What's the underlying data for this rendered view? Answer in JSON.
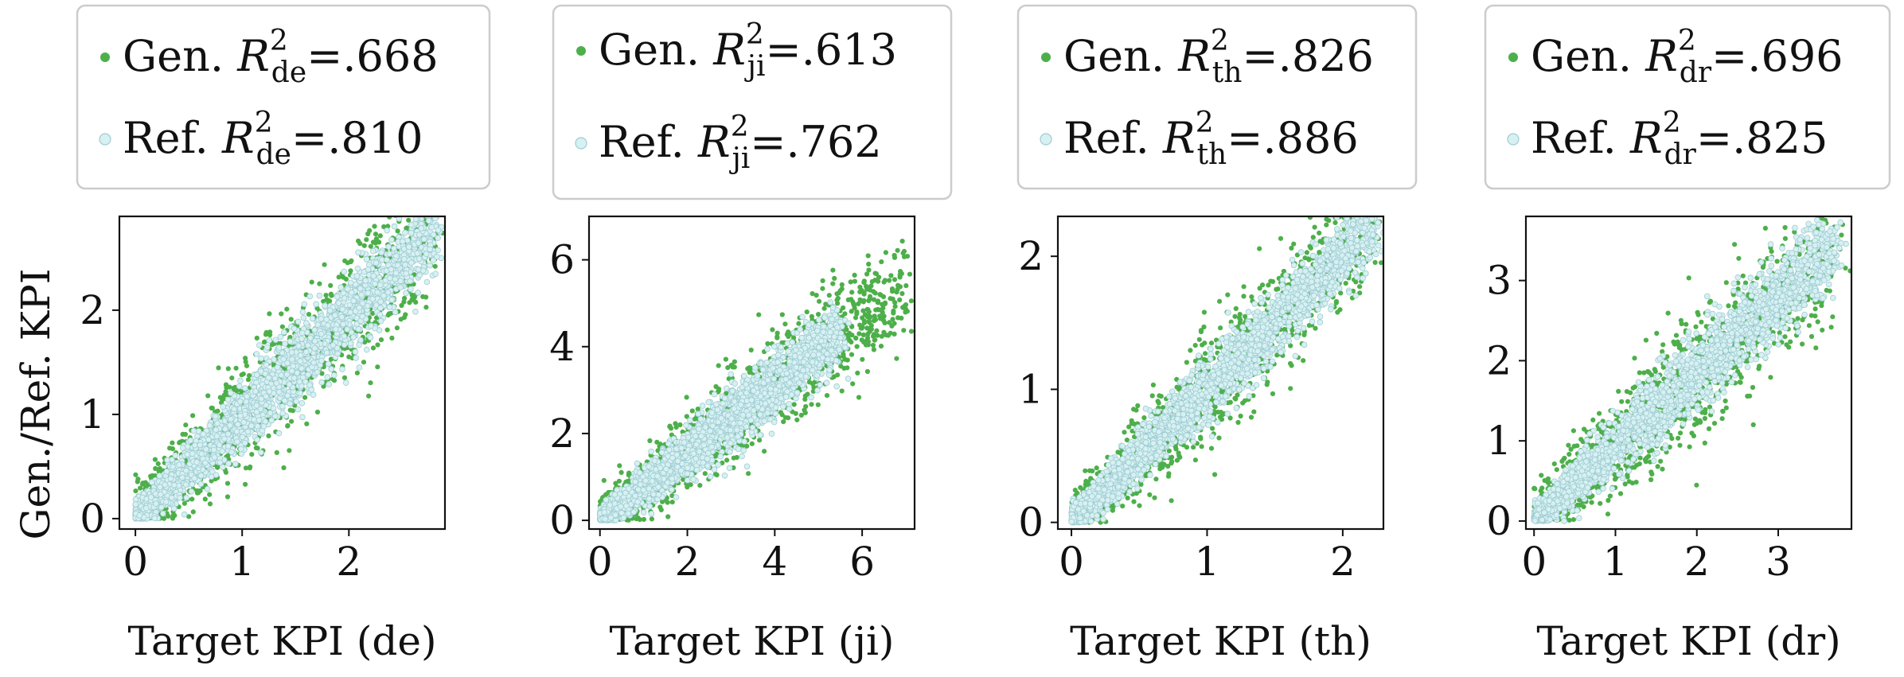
{
  "ylabel": "Gen./Ref. KPI",
  "chart_data": [
    {
      "type": "scatter",
      "region": "de",
      "xlabel": "Target KPI (de)",
      "ylabel": "Gen./Ref. KPI",
      "xlim": [
        -0.15,
        2.9
      ],
      "ylim": [
        -0.1,
        2.9
      ],
      "xticks": [
        "0",
        "1",
        "2"
      ],
      "yticks": [
        "0",
        "1",
        "2"
      ],
      "xtick_values": [
        0,
        1,
        2
      ],
      "ytick_values": [
        0,
        1,
        2
      ],
      "n_points_est": 9000,
      "series": [
        {
          "name": "Gen.",
          "r2": ".668",
          "label_prefix": "Gen. ",
          "label_value": "=.668",
          "color": "#4daf4a",
          "marker": "filled-dot",
          "x_range": [
            0,
            2.8
          ],
          "slope": 0.98,
          "spread_sd": 0.28
        },
        {
          "name": "Ref.",
          "r2": ".810",
          "label_prefix": "Ref. ",
          "label_value": "=.810",
          "color": "#d7f0f2",
          "edge_color": "#9ecdd2",
          "marker": "hollow-circle",
          "x_range": [
            0,
            2.8
          ],
          "slope": 0.98,
          "spread_sd": 0.18
        }
      ],
      "legend_loc": "top"
    },
    {
      "type": "scatter",
      "region": "ji",
      "xlabel": "Target KPI (ji)",
      "ylabel": "",
      "xlim": [
        -0.25,
        7.2
      ],
      "ylim": [
        -0.2,
        7.0
      ],
      "xticks": [
        "0",
        "2",
        "4",
        "6"
      ],
      "yticks": [
        "0",
        "2",
        "4",
        "6"
      ],
      "xtick_values": [
        0,
        2,
        4,
        6
      ],
      "ytick_values": [
        0,
        2,
        4,
        6
      ],
      "n_points_est": 9000,
      "series": [
        {
          "name": "Gen.",
          "r2": ".613",
          "label_prefix": "Gen. ",
          "label_value": "=.613",
          "color": "#4daf4a",
          "marker": "filled-dot",
          "x_range": [
            0,
            6.9
          ],
          "slope": 0.78,
          "spread_sd": 0.55
        },
        {
          "name": "Ref.",
          "r2": ".762",
          "label_prefix": "Ref. ",
          "label_value": "=.762",
          "color": "#d7f0f2",
          "edge_color": "#9ecdd2",
          "marker": "hollow-circle",
          "x_range": [
            0,
            5.5
          ],
          "slope": 0.78,
          "spread_sd": 0.35
        }
      ],
      "legend_loc": "top"
    },
    {
      "type": "scatter",
      "region": "th",
      "xlabel": "Target KPI (th)",
      "ylabel": "",
      "xlim": [
        -0.1,
        2.3
      ],
      "ylim": [
        -0.05,
        2.3
      ],
      "xticks": [
        "0",
        "1",
        "2"
      ],
      "yticks": [
        "0",
        "1",
        "2"
      ],
      "xtick_values": [
        0,
        1,
        2
      ],
      "ytick_values": [
        0,
        1,
        2
      ],
      "n_points_est": 9000,
      "series": [
        {
          "name": "Gen.",
          "r2": ".826",
          "label_prefix": "Gen. ",
          "label_value": "=.826",
          "color": "#4daf4a",
          "marker": "filled-dot",
          "x_range": [
            0,
            2.25
          ],
          "slope": 1.0,
          "spread_sd": 0.2
        },
        {
          "name": "Ref.",
          "r2": ".886",
          "label_prefix": "Ref. ",
          "label_value": "=.886",
          "color": "#d7f0f2",
          "edge_color": "#9ecdd2",
          "marker": "hollow-circle",
          "x_range": [
            0,
            2.25
          ],
          "slope": 1.0,
          "spread_sd": 0.13
        }
      ],
      "legend_loc": "top"
    },
    {
      "type": "scatter",
      "region": "dr",
      "xlabel": "Target KPI (dr)",
      "ylabel": "",
      "xlim": [
        -0.1,
        3.9
      ],
      "ylim": [
        -0.1,
        3.8
      ],
      "xticks": [
        "0",
        "1",
        "2",
        "3"
      ],
      "yticks": [
        "0",
        "1",
        "2",
        "3"
      ],
      "xtick_values": [
        0,
        1,
        2,
        3
      ],
      "ytick_values": [
        0,
        1,
        2,
        3
      ],
      "n_points_est": 9000,
      "series": [
        {
          "name": "Gen.",
          "r2": ".696",
          "label_prefix": "Gen. ",
          "label_value": "=.696",
          "color": "#4daf4a",
          "marker": "filled-dot",
          "x_range": [
            0,
            3.7
          ],
          "slope": 0.93,
          "spread_sd": 0.38
        },
        {
          "name": "Ref.",
          "r2": ".825",
          "label_prefix": "Ref. ",
          "label_value": "=.825",
          "color": "#d7f0f2",
          "edge_color": "#9ecdd2",
          "marker": "hollow-circle",
          "x_range": [
            0,
            3.7
          ],
          "slope": 0.93,
          "spread_sd": 0.24
        }
      ],
      "legend_loc": "top"
    }
  ],
  "r2_symbol": "R",
  "r2_superscript": "2"
}
